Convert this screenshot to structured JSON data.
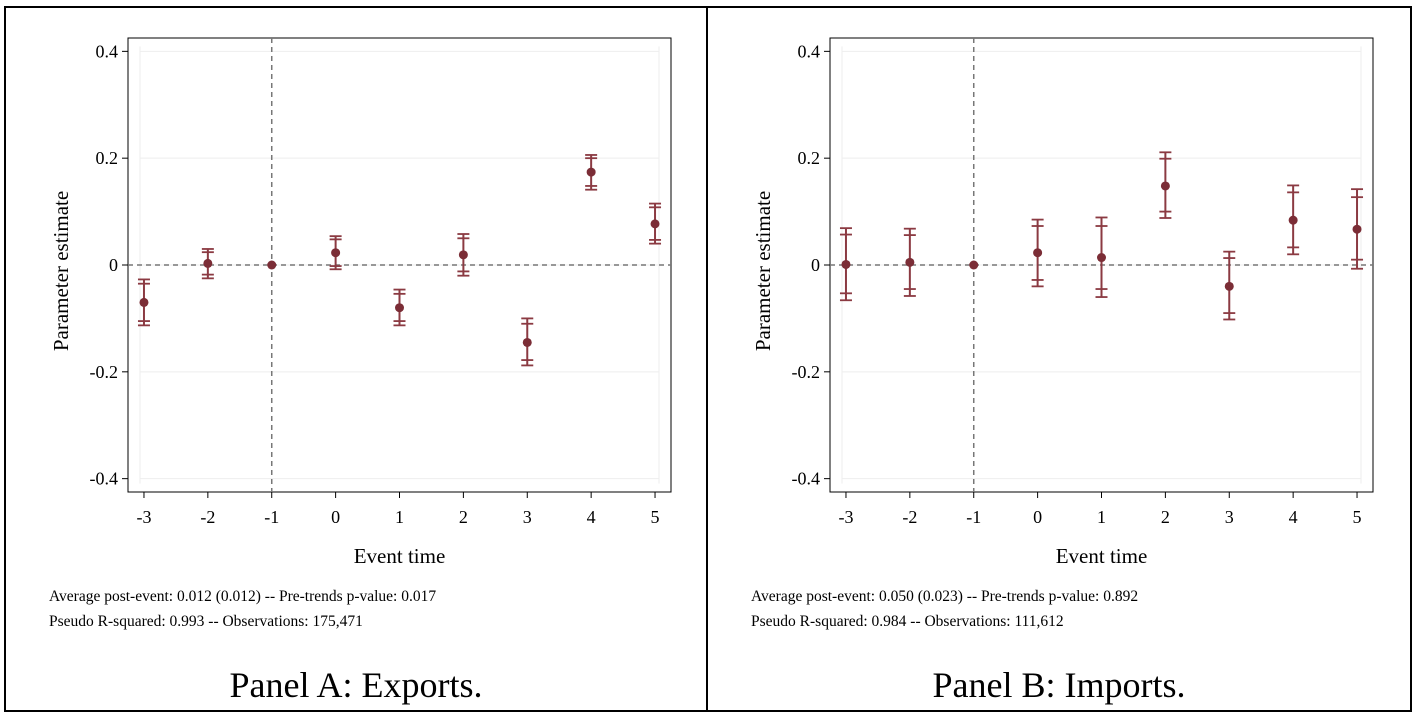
{
  "chart_data": [
    {
      "type": "scatter",
      "panel_caption": "Panel A: Exports.",
      "xlabel": "Event time",
      "ylabel": "Parameter estimate",
      "x": [
        -3,
        -2,
        -1,
        0,
        1,
        2,
        3,
        4,
        5
      ],
      "x_tick_labels": [
        "-3",
        "-2",
        "-1",
        "0",
        "1",
        "2",
        "3",
        "4",
        "5"
      ],
      "y_ticks": [
        0.4,
        0.2,
        0,
        -0.2,
        -0.4
      ],
      "y_tick_labels": [
        "0.4",
        "0.2",
        "0",
        "-0.2",
        "-0.4"
      ],
      "xlim": [
        -3.25,
        5.25
      ],
      "ylim": [
        -0.425,
        0.425
      ],
      "estimates": [
        -0.07,
        0.003,
        0.0,
        0.023,
        -0.08,
        0.019,
        -0.145,
        0.174,
        0.077
      ],
      "ci_outer": [
        [
          -0.113,
          -0.027
        ],
        [
          -0.025,
          0.03
        ],
        [
          0.0,
          0.0
        ],
        [
          -0.008,
          0.054
        ],
        [
          -0.113,
          -0.046
        ],
        [
          -0.02,
          0.058
        ],
        [
          -0.188,
          -0.1
        ],
        [
          0.141,
          0.206
        ],
        [
          0.04,
          0.115
        ]
      ],
      "ci_inner": [
        [
          -0.105,
          -0.035
        ],
        [
          -0.018,
          0.024
        ],
        [
          0.0,
          0.0
        ],
        [
          -0.002,
          0.048
        ],
        [
          -0.105,
          -0.054
        ],
        [
          -0.012,
          0.05
        ],
        [
          -0.178,
          -0.11
        ],
        [
          0.148,
          0.2
        ],
        [
          0.047,
          0.108
        ]
      ],
      "reference_lines": {
        "vertical_x": -1,
        "horizontal_y": 0
      },
      "notes": [
        "Average post-event: 0.012 (0.012) -- Pre-trends p-value: 0.017",
        "Pseudo R-squared: 0.993 -- Observations: 175,471"
      ],
      "grid": true,
      "marker_color": "#7b2d36",
      "errorbar_color": "#8b3a42",
      "refline_color": "#777777",
      "grid_color": "#eeeeee"
    },
    {
      "type": "scatter",
      "panel_caption": "Panel B: Imports.",
      "xlabel": "Event time",
      "ylabel": "Parameter estimate",
      "x": [
        -3,
        -2,
        -1,
        0,
        1,
        2,
        3,
        4,
        5
      ],
      "x_tick_labels": [
        "-3",
        "-2",
        "-1",
        "0",
        "1",
        "2",
        "3",
        "4",
        "5"
      ],
      "y_ticks": [
        0.4,
        0.2,
        0,
        -0.2,
        -0.4
      ],
      "y_tick_labels": [
        "0.4",
        "0.2",
        "0",
        "-0.2",
        "-0.4"
      ],
      "xlim": [
        -3.25,
        5.25
      ],
      "ylim": [
        -0.425,
        0.425
      ],
      "estimates": [
        0.001,
        0.005,
        0.0,
        0.023,
        0.014,
        0.148,
        -0.04,
        0.084,
        0.067
      ],
      "ci_outer": [
        [
          -0.066,
          0.069
        ],
        [
          -0.058,
          0.068
        ],
        [
          0.0,
          0.0
        ],
        [
          -0.04,
          0.085
        ],
        [
          -0.06,
          0.089
        ],
        [
          0.088,
          0.211
        ],
        [
          -0.102,
          0.025
        ],
        [
          0.02,
          0.149
        ],
        [
          -0.007,
          0.142
        ]
      ],
      "ci_inner": [
        [
          -0.053,
          0.057
        ],
        [
          -0.045,
          0.056
        ],
        [
          0.0,
          0.0
        ],
        [
          -0.028,
          0.073
        ],
        [
          -0.045,
          0.073
        ],
        [
          0.1,
          0.199
        ],
        [
          -0.09,
          0.013
        ],
        [
          0.033,
          0.136
        ],
        [
          0.01,
          0.127
        ]
      ],
      "reference_lines": {
        "vertical_x": -1,
        "horizontal_y": 0
      },
      "notes": [
        "Average post-event: 0.050 (0.023) -- Pre-trends p-value: 0.892",
        "Pseudo R-squared: 0.984 -- Observations: 111,612"
      ],
      "grid": true,
      "marker_color": "#7b2d36",
      "errorbar_color": "#8b3a42",
      "refline_color": "#777777",
      "grid_color": "#eeeeee"
    }
  ]
}
